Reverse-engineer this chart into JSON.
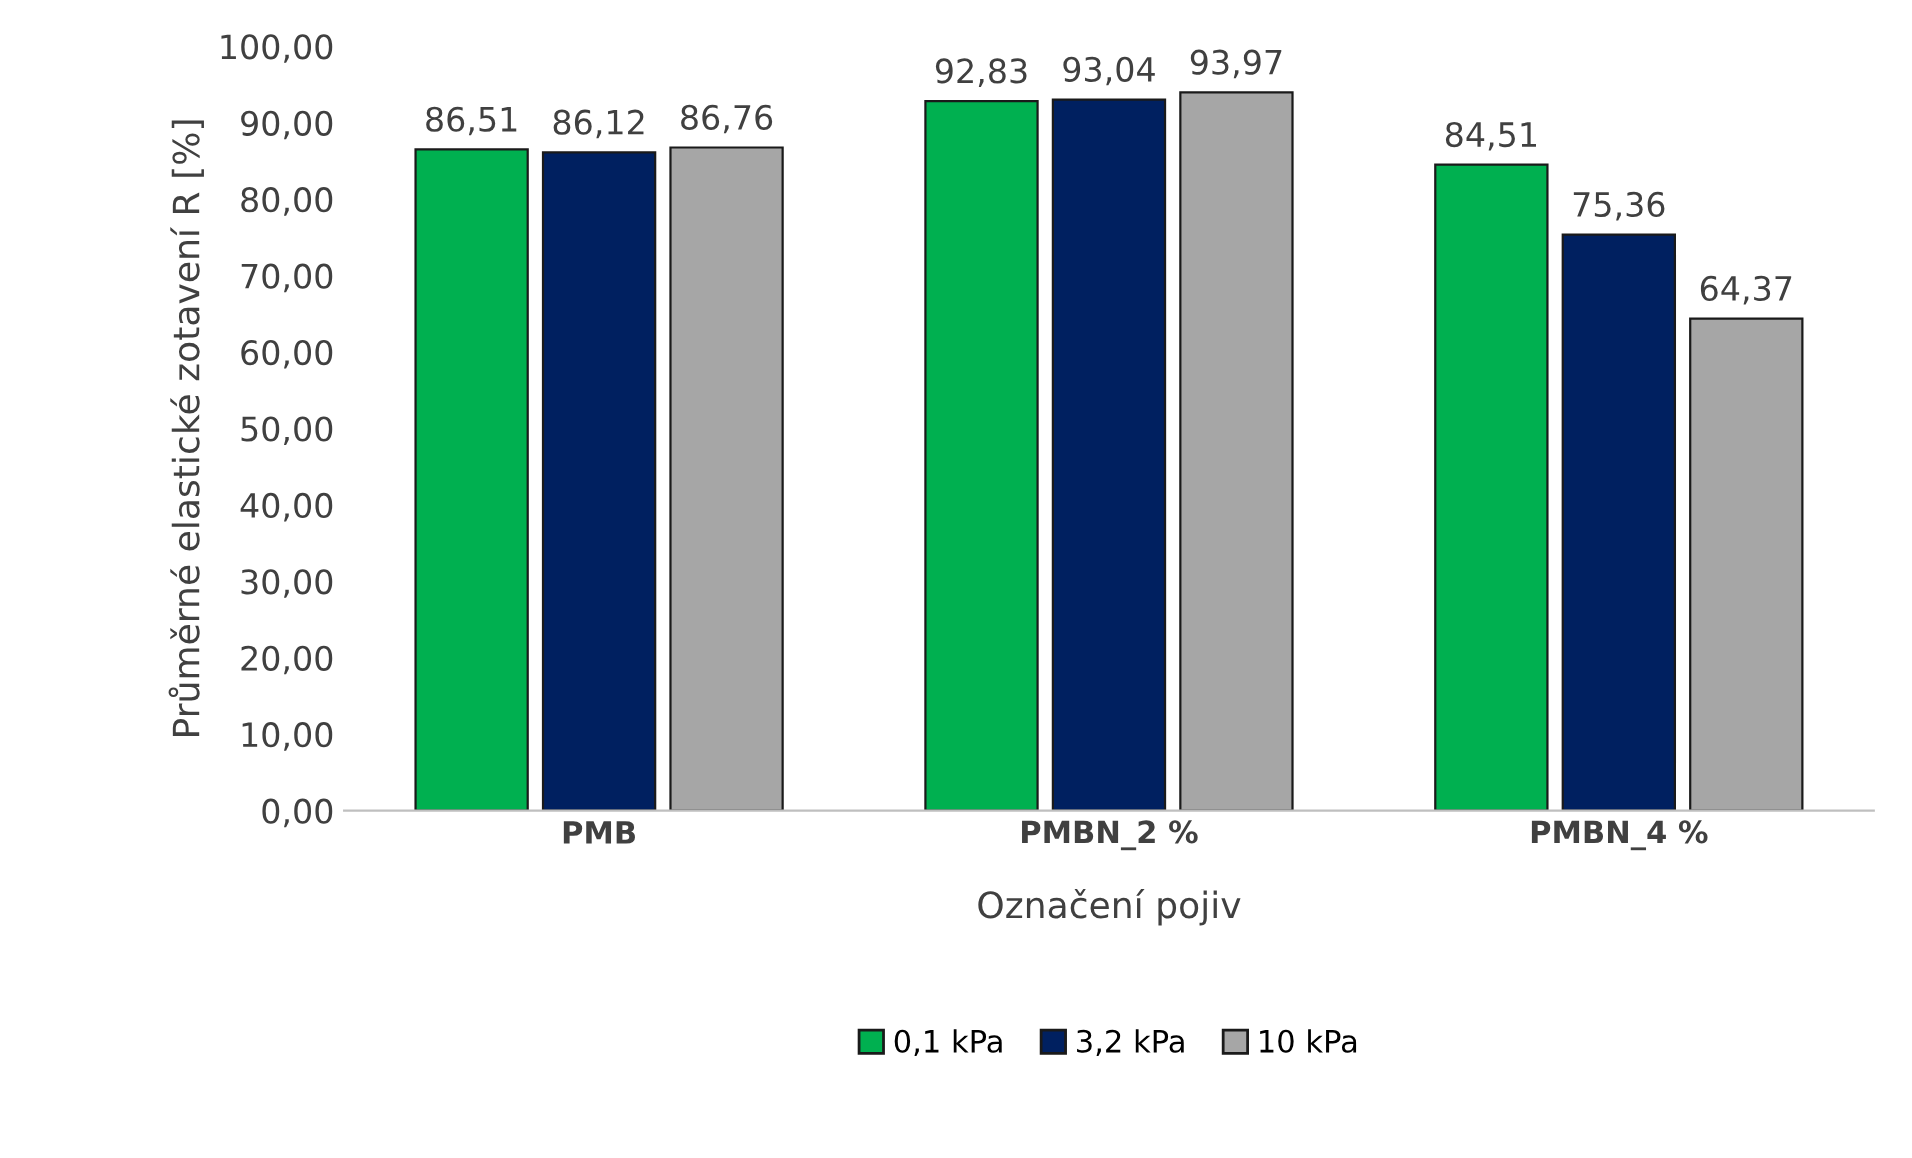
{
  "chart_data": {
    "type": "bar",
    "xlabel": "Označení pojiv",
    "ylabel": "Průměrné elastické zotavení R [%]",
    "categories": [
      "PMB",
      "PMBN_2 %",
      "PMBN_4 %"
    ],
    "series": [
      {
        "name": "0,1 kPa",
        "color": "#00b050",
        "values": [
          86.51,
          92.83,
          84.51
        ],
        "value_labels": [
          "86,51",
          "92,83",
          "84,51"
        ]
      },
      {
        "name": "3,2 kPa",
        "color": "#002060",
        "values": [
          86.12,
          93.04,
          75.36
        ],
        "value_labels": [
          "86,12",
          "93,04",
          "75,36"
        ]
      },
      {
        "name": "10 kPa",
        "color": "#a6a6a6",
        "values": [
          86.76,
          93.97,
          64.37
        ],
        "value_labels": [
          "86,76",
          "93,97",
          "64,37"
        ]
      }
    ],
    "ylim": [
      0,
      100
    ],
    "yticks": [
      {
        "value": 0,
        "label": "0,00"
      },
      {
        "value": 10,
        "label": "10,00"
      },
      {
        "value": 20,
        "label": "20,00"
      },
      {
        "value": 30,
        "label": "30,00"
      },
      {
        "value": 40,
        "label": "40,00"
      },
      {
        "value": 50,
        "label": "50,00"
      },
      {
        "value": 60,
        "label": "60,00"
      },
      {
        "value": 70,
        "label": "70,00"
      },
      {
        "value": 80,
        "label": "80,00"
      },
      {
        "value": 90,
        "label": "90,00"
      },
      {
        "value": 100,
        "label": "100,00"
      }
    ],
    "grid": false,
    "legend": "bottom"
  }
}
